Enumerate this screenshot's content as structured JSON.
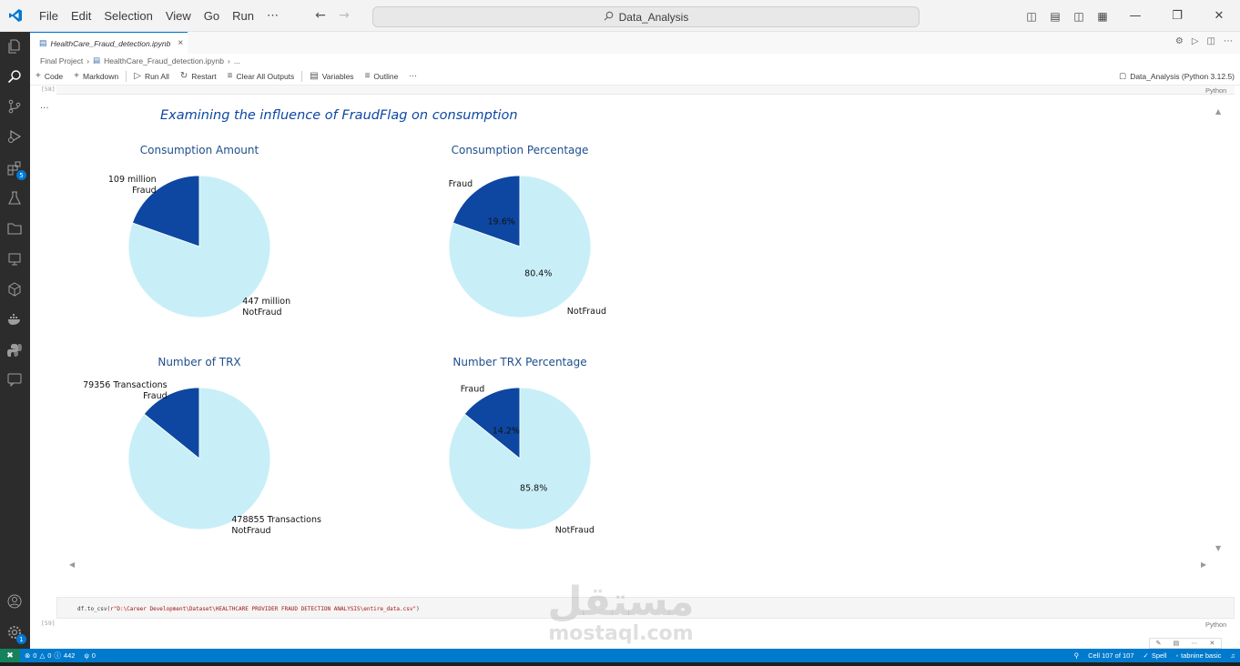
{
  "window": {
    "menu": [
      "File",
      "Edit",
      "Selection",
      "View",
      "Go",
      "Run",
      "⋯"
    ],
    "search_text": "Data_Analysis"
  },
  "icons": {
    "app": "vscode-logo-icon",
    "activity": [
      "explorer-icon",
      "search-icon",
      "source-control-icon",
      "run-debug-icon",
      "extensions-icon",
      "testing-icon",
      "folder-icon",
      "remote-explorer-icon",
      "stack-icon",
      "docker-icon",
      "python-icon",
      "chat-icon",
      "account-icon",
      "settings-gear-icon"
    ],
    "extensions_badge": "5",
    "settings_badge": "1"
  },
  "tab": {
    "filename": "HealthCare_Fraud_detection.ipynb",
    "close": "×"
  },
  "breadcrumb": {
    "folder": "Final Project",
    "file": "HealthCare_Fraud_detection.ipynb",
    "more": "..."
  },
  "toolbar": {
    "code": "Code",
    "markdown": "Markdown",
    "run_all": "Run All",
    "restart": "Restart",
    "clear_outputs": "Clear All Outputs",
    "variables": "Variables",
    "outline": "Outline",
    "more": "⋯",
    "kernel": "Data_Analysis (Python 3.12.5)"
  },
  "cells": {
    "prev_exec": "[58]",
    "prev_lang": "Python",
    "output_dots": "...",
    "next_exec": "[59]",
    "next_lang": "Python",
    "code_prefix": "df.to_csv(",
    "code_string": "r\"D:\\Career Development\\Dataset\\HEALTHCARE PROVIDER FRAUD DETECTION ANALYSIS\\entire_data.csv\"",
    "code_suffix": ")"
  },
  "chart_data": {
    "type": "pie",
    "title": "Examining the influence of FraudFlag on consumption",
    "colors": {
      "Fraud": "#0d47a1",
      "NotFraud": "#c8eff7"
    },
    "charts": [
      {
        "title": "Consumption Amount",
        "slices": [
          {
            "label": "Fraud",
            "value": 109,
            "text": "109 million"
          },
          {
            "label": "NotFraud",
            "value": 447,
            "text": "447 million"
          }
        ]
      },
      {
        "title": "Consumption Percentage",
        "slices": [
          {
            "label": "Fraud",
            "value": 19.6,
            "text": "19.6%"
          },
          {
            "label": "NotFraud",
            "value": 80.4,
            "text": "80.4%"
          }
        ]
      },
      {
        "title": "Number of TRX",
        "slices": [
          {
            "label": "Fraud",
            "value": 79356,
            "text": "79356  Transactions"
          },
          {
            "label": "NotFraud",
            "value": 478855,
            "text": "478855  Transactions"
          }
        ]
      },
      {
        "title": "Number TRX Percentage",
        "slices": [
          {
            "label": "Fraud",
            "value": 14.2,
            "text": "14.2%"
          },
          {
            "label": "NotFraud",
            "value": 85.8,
            "text": "85.8%"
          }
        ]
      }
    ]
  },
  "status": {
    "errors": "0",
    "warnings": "0",
    "info": "442",
    "ports": "0",
    "cell_position": "Cell 107 of 107",
    "spell": "Spell",
    "tabnine": "tabnine basic"
  },
  "watermark": {
    "arabic": "مستقل",
    "latin": "mostaql.com"
  }
}
